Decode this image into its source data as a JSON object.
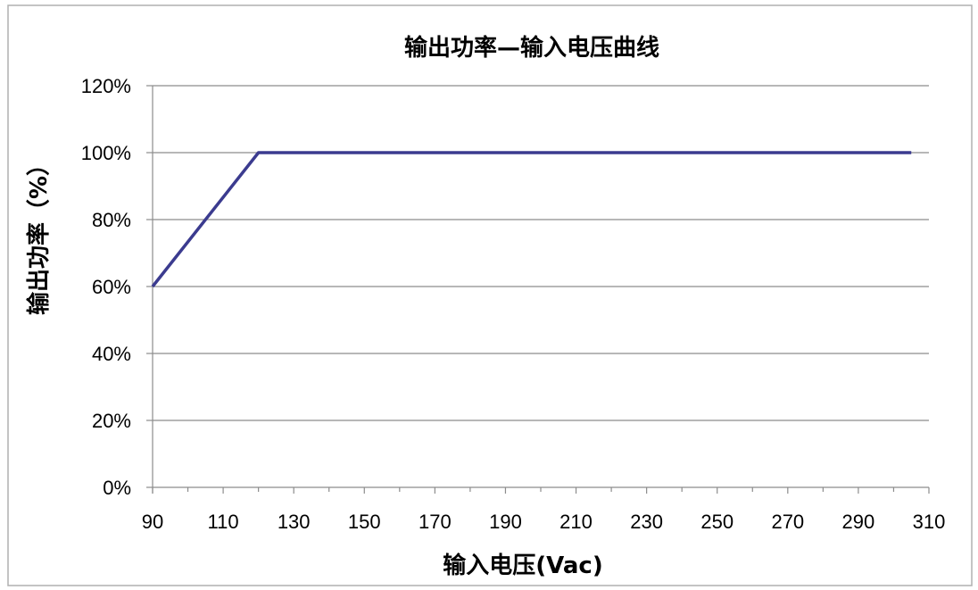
{
  "chart_data": {
    "type": "line",
    "title": "输出功率—输入电压曲线",
    "xlabel": "输入电压(Vac)",
    "ylabel": "输出功率（%）",
    "xlim": [
      90,
      310
    ],
    "ylim": [
      0,
      120
    ],
    "x_ticks": [
      90,
      110,
      130,
      150,
      170,
      190,
      210,
      230,
      250,
      270,
      290,
      310
    ],
    "y_ticks": [
      0,
      20,
      40,
      60,
      80,
      100,
      120
    ],
    "y_tick_labels": [
      "0%",
      "20%",
      "40%",
      "60%",
      "80%",
      "100%",
      "120%"
    ],
    "grid": "horizontal",
    "legend": "none",
    "series": [
      {
        "color": "#3b3b8f",
        "x": [
          90,
          120,
          305
        ],
        "y": [
          60,
          100,
          100
        ]
      }
    ]
  }
}
